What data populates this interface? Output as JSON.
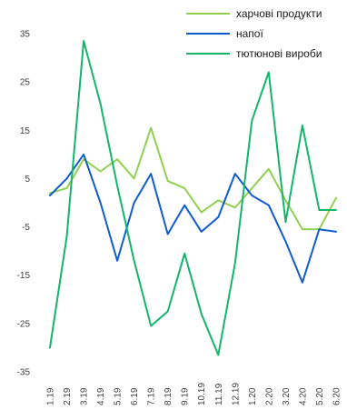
{
  "chart_data": {
    "type": "line",
    "title": "",
    "xlabel": "",
    "ylabel": "",
    "ylim": [
      -35,
      35
    ],
    "yticks": [
      35,
      25,
      15,
      5,
      -5,
      -15,
      -25,
      -35
    ],
    "grid": false,
    "legend_position": "top-right",
    "categories": [
      "1.19",
      "2.19",
      "3.19",
      "4.19",
      "5.19",
      "6.19",
      "7.19",
      "8.19",
      "9.19",
      "10.19",
      "11.19",
      "12.19",
      "1.20",
      "2.20",
      "3.20",
      "4.20",
      "5.20",
      "6.20"
    ],
    "series": [
      {
        "name": "харчові продукти",
        "color": "#8fd14f",
        "values": [
          2.0,
          3.0,
          9.0,
          6.5,
          9.0,
          5.0,
          15.5,
          4.5,
          3.0,
          -2.0,
          0.5,
          -1.0,
          3.0,
          7.0,
          0.5,
          -5.5,
          -5.5,
          1.0
        ]
      },
      {
        "name": "напої",
        "color": "#0f5ccf",
        "values": [
          1.5,
          5.0,
          10.0,
          0.0,
          -12.0,
          0.0,
          6.0,
          -6.5,
          -0.5,
          -6.0,
          -3.0,
          6.0,
          1.5,
          -0.5,
          -8.0,
          -16.5,
          -5.5,
          -6.0
        ]
      },
      {
        "name": "тютюнові вироби",
        "color": "#14b56a",
        "values": [
          -30.0,
          -7.0,
          33.5,
          20.5,
          3.5,
          -12.0,
          -25.5,
          -22.5,
          -10.5,
          -23.0,
          -31.5,
          -12.5,
          17.0,
          27.0,
          -4.0,
          16.0,
          -1.5,
          -1.5
        ]
      }
    ]
  }
}
